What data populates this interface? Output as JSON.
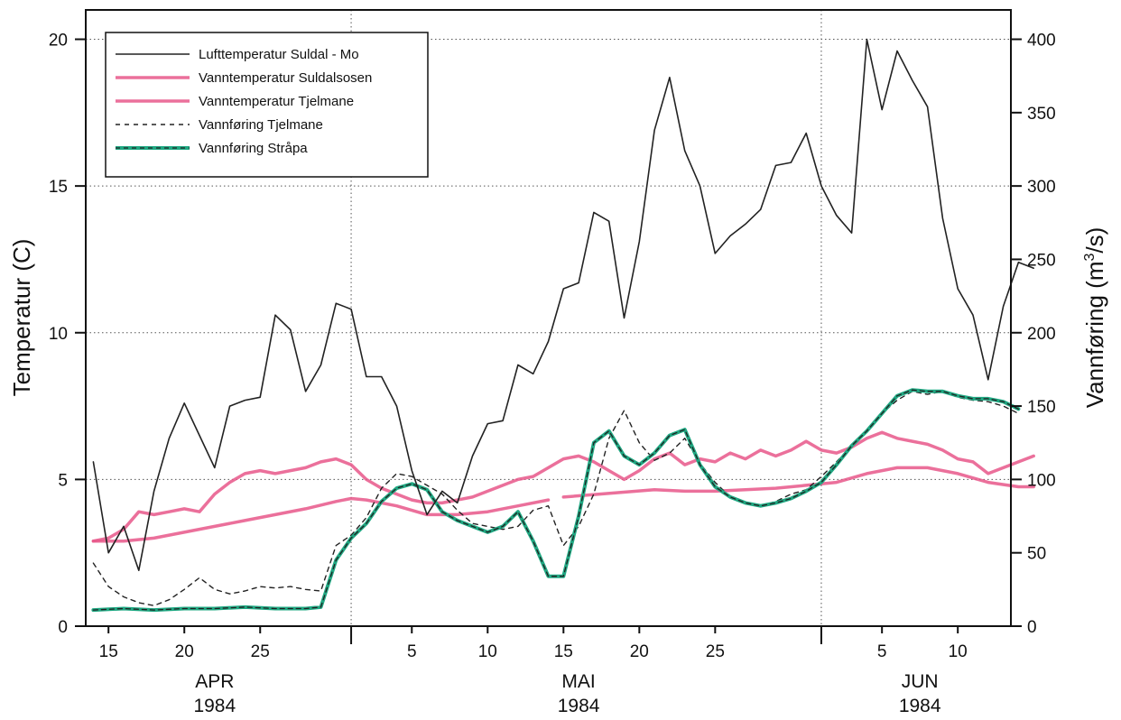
{
  "chart_data": {
    "type": "line",
    "x_axis": {
      "unit": "day-of-period",
      "note": "day 1 = 1 April 1984",
      "range": [
        13.5,
        74.5
      ],
      "ticks": [
        {
          "x": 15,
          "label": "15"
        },
        {
          "x": 20,
          "label": "20"
        },
        {
          "x": 25,
          "label": "25"
        },
        {
          "x": 35,
          "label": "5"
        },
        {
          "x": 40,
          "label": "10"
        },
        {
          "x": 45,
          "label": "15"
        },
        {
          "x": 50,
          "label": "20"
        },
        {
          "x": 55,
          "label": "25"
        },
        {
          "x": 66,
          "label": "5"
        },
        {
          "x": 71,
          "label": "10"
        }
      ],
      "month_boundaries": [
        31,
        62
      ],
      "months": [
        {
          "name": "APR",
          "year": "1984",
          "x": 22
        },
        {
          "name": "MAI",
          "year": "1984",
          "x": 46
        },
        {
          "name": "JUN",
          "year": "1984",
          "x": 68.5
        }
      ]
    },
    "y_left": {
      "label": "Temperatur (C)",
      "range": [
        0,
        21
      ],
      "ticks": [
        0,
        5,
        10,
        15,
        20
      ],
      "grid": true
    },
    "y_right": {
      "label_main": "Vannføring (m",
      "label_sup": "3",
      "label_tail": "/s)",
      "range": [
        0,
        420
      ],
      "ticks": [
        0,
        50,
        100,
        150,
        200,
        250,
        300,
        350,
        400
      ]
    },
    "legend": {
      "position": "top-left",
      "entries": [
        {
          "name": "Lufttemperatur Suldal - Mo",
          "style": "thin-black"
        },
        {
          "name": "Vanntemperatur Suldalsosen",
          "style": "pink"
        },
        {
          "name": "Vanntemperatur Tjelmane",
          "style": "pink"
        },
        {
          "name": "Vannføring Tjelmane",
          "style": "dashed-black"
        },
        {
          "name": "Vannføring Stråpa",
          "style": "green-dashed"
        }
      ]
    },
    "series": [
      {
        "name": "Lufttemperatur Suldal - Mo",
        "axis": "left",
        "color": "#222222",
        "points": [
          [
            14,
            5.6
          ],
          [
            15,
            2.5
          ],
          [
            16,
            3.4
          ],
          [
            17,
            1.9
          ],
          [
            18,
            4.6
          ],
          [
            19,
            6.4
          ],
          [
            20,
            7.6
          ],
          [
            21,
            6.5
          ],
          [
            22,
            5.4
          ],
          [
            23,
            7.5
          ],
          [
            24,
            7.7
          ],
          [
            25,
            7.8
          ],
          [
            26,
            10.6
          ],
          [
            27,
            10.1
          ],
          [
            28,
            8.0
          ],
          [
            29,
            8.9
          ],
          [
            30,
            11.0
          ],
          [
            31,
            10.8
          ],
          [
            32,
            8.5
          ],
          [
            33,
            8.5
          ],
          [
            34,
            7.5
          ],
          [
            35,
            5.3
          ],
          [
            36,
            3.8
          ],
          [
            37,
            4.6
          ],
          [
            38,
            4.2
          ],
          [
            39,
            5.8
          ],
          [
            40,
            6.9
          ],
          [
            41,
            7.0
          ],
          [
            42,
            8.9
          ],
          [
            43,
            8.6
          ],
          [
            44,
            9.7
          ],
          [
            45,
            11.5
          ],
          [
            46,
            11.7
          ],
          [
            47,
            14.1
          ],
          [
            48,
            13.8
          ],
          [
            49,
            10.5
          ],
          [
            50,
            13.1
          ],
          [
            51,
            16.9
          ],
          [
            52,
            18.7
          ],
          [
            53,
            16.2
          ],
          [
            54,
            15.0
          ],
          [
            55,
            12.7
          ],
          [
            56,
            13.3
          ],
          [
            57,
            13.7
          ],
          [
            58,
            14.2
          ],
          [
            59,
            15.7
          ],
          [
            60,
            15.8
          ],
          [
            61,
            16.8
          ],
          [
            62,
            15.0
          ],
          [
            63,
            14.0
          ],
          [
            64,
            13.4
          ],
          [
            65,
            20.0
          ],
          [
            66,
            17.6
          ],
          [
            67,
            19.6
          ],
          [
            68,
            18.6
          ],
          [
            69,
            17.7
          ],
          [
            70,
            13.9
          ],
          [
            71,
            11.5
          ],
          [
            72,
            10.6
          ],
          [
            73,
            8.4
          ],
          [
            74,
            10.9
          ],
          [
            75,
            12.4
          ],
          [
            76,
            12.2
          ]
        ]
      },
      {
        "name": "Vanntemperatur Suldalsosen",
        "axis": "left",
        "color": "#e8578a",
        "points": [
          [
            14,
            2.9
          ],
          [
            15,
            3.0
          ],
          [
            16,
            3.3
          ],
          [
            17,
            3.9
          ],
          [
            18,
            3.8
          ],
          [
            19,
            3.9
          ],
          [
            20,
            4.0
          ],
          [
            21,
            3.9
          ],
          [
            22,
            4.5
          ],
          [
            23,
            4.9
          ],
          [
            24,
            5.2
          ],
          [
            25,
            5.3
          ],
          [
            26,
            5.2
          ],
          [
            27,
            5.3
          ],
          [
            28,
            5.4
          ],
          [
            29,
            5.6
          ],
          [
            30,
            5.7
          ],
          [
            31,
            5.5
          ],
          [
            32,
            5.0
          ],
          [
            33,
            4.7
          ],
          [
            34,
            4.5
          ],
          [
            35,
            4.3
          ],
          [
            36,
            4.2
          ],
          [
            37,
            4.2
          ],
          [
            38,
            4.3
          ],
          [
            39,
            4.4
          ],
          [
            40,
            4.6
          ],
          [
            41,
            4.8
          ],
          [
            42,
            5.0
          ],
          [
            43,
            5.1
          ],
          [
            44,
            5.4
          ],
          [
            45,
            5.7
          ],
          [
            46,
            5.8
          ],
          [
            47,
            5.6
          ],
          [
            48,
            5.3
          ],
          [
            49,
            5.0
          ],
          [
            50,
            5.3
          ],
          [
            51,
            5.7
          ],
          [
            52,
            5.9
          ],
          [
            53,
            5.5
          ],
          [
            54,
            5.7
          ],
          [
            55,
            5.6
          ],
          [
            56,
            5.9
          ],
          [
            57,
            5.7
          ],
          [
            58,
            6.0
          ],
          [
            59,
            5.8
          ],
          [
            60,
            6.0
          ],
          [
            61,
            6.3
          ],
          [
            62,
            6.0
          ],
          [
            63,
            5.9
          ],
          [
            64,
            6.1
          ],
          [
            65,
            6.4
          ],
          [
            66,
            6.6
          ],
          [
            67,
            6.4
          ],
          [
            68,
            6.3
          ],
          [
            69,
            6.2
          ],
          [
            70,
            6.0
          ],
          [
            71,
            5.7
          ],
          [
            72,
            5.6
          ],
          [
            73,
            5.2
          ],
          [
            74,
            5.4
          ],
          [
            75,
            5.6
          ],
          [
            76,
            5.8
          ]
        ]
      },
      {
        "name": "Vanntemperatur Tjelmane",
        "axis": "left",
        "color": "#e8578a",
        "gap_after": 44,
        "points": [
          [
            14,
            2.9
          ],
          [
            16,
            2.9
          ],
          [
            18,
            3.0
          ],
          [
            20,
            3.2
          ],
          [
            22,
            3.4
          ],
          [
            24,
            3.6
          ],
          [
            26,
            3.8
          ],
          [
            28,
            4.0
          ],
          [
            30,
            4.25
          ],
          [
            31,
            4.35
          ],
          [
            32,
            4.3
          ],
          [
            34,
            4.1
          ],
          [
            36,
            3.8
          ],
          [
            38,
            3.8
          ],
          [
            40,
            3.9
          ],
          [
            42,
            4.1
          ],
          [
            44,
            4.3
          ],
          [
            45,
            4.4
          ],
          [
            51,
            4.65
          ],
          [
            53,
            4.6
          ],
          [
            55,
            4.6
          ],
          [
            57,
            4.65
          ],
          [
            59,
            4.7
          ],
          [
            61,
            4.8
          ],
          [
            63,
            4.9
          ],
          [
            65,
            5.2
          ],
          [
            67,
            5.4
          ],
          [
            69,
            5.4
          ],
          [
            71,
            5.2
          ],
          [
            73,
            4.9
          ],
          [
            75,
            4.75
          ],
          [
            76,
            4.75
          ]
        ]
      },
      {
        "name": "Vannføring Tjelmane",
        "axis": "right",
        "color": "#222222",
        "points": [
          [
            14,
            43
          ],
          [
            15,
            27
          ],
          [
            16,
            20
          ],
          [
            17,
            16
          ],
          [
            18,
            14
          ],
          [
            19,
            18
          ],
          [
            20,
            25
          ],
          [
            21,
            33
          ],
          [
            22,
            25
          ],
          [
            23,
            22
          ],
          [
            24,
            24
          ],
          [
            25,
            27
          ],
          [
            26,
            26
          ],
          [
            27,
            27
          ],
          [
            28,
            25
          ],
          [
            29,
            24
          ],
          [
            30,
            55
          ],
          [
            31,
            62
          ],
          [
            32,
            74
          ],
          [
            33,
            94
          ],
          [
            34,
            104
          ],
          [
            35,
            102
          ],
          [
            36,
            96
          ],
          [
            37,
            90
          ],
          [
            38,
            79
          ],
          [
            39,
            70
          ],
          [
            40,
            68
          ],
          [
            41,
            66
          ],
          [
            42,
            68
          ],
          [
            43,
            79
          ],
          [
            44,
            82
          ],
          [
            45,
            55
          ],
          [
            46,
            68
          ],
          [
            47,
            90
          ],
          [
            48,
            128
          ],
          [
            49,
            147
          ],
          [
            50,
            125
          ],
          [
            51,
            113
          ],
          [
            52,
            118
          ],
          [
            53,
            128
          ],
          [
            54,
            111
          ],
          [
            55,
            98
          ],
          [
            56,
            88
          ],
          [
            57,
            84
          ],
          [
            58,
            82
          ],
          [
            59,
            85
          ],
          [
            60,
            90
          ],
          [
            61,
            93
          ],
          [
            62,
            102
          ],
          [
            63,
            112
          ],
          [
            64,
            123
          ],
          [
            65,
            133
          ],
          [
            66,
            145
          ],
          [
            67,
            154
          ],
          [
            68,
            160
          ],
          [
            69,
            158
          ],
          [
            70,
            160
          ],
          [
            71,
            156
          ],
          [
            72,
            154
          ],
          [
            73,
            153
          ],
          [
            74,
            150
          ],
          [
            75,
            145
          ]
        ]
      },
      {
        "name": "Vannføring Stråpa",
        "axis": "right",
        "color": "#1fa882",
        "points": [
          [
            14,
            11
          ],
          [
            16,
            12
          ],
          [
            18,
            11
          ],
          [
            20,
            12
          ],
          [
            22,
            12
          ],
          [
            24,
            13
          ],
          [
            26,
            12
          ],
          [
            28,
            12
          ],
          [
            29,
            13
          ],
          [
            30,
            45
          ],
          [
            31,
            60
          ],
          [
            32,
            70
          ],
          [
            33,
            85
          ],
          [
            34,
            94
          ],
          [
            35,
            97
          ],
          [
            36,
            93
          ],
          [
            37,
            78
          ],
          [
            38,
            72
          ],
          [
            39,
            68
          ],
          [
            40,
            64
          ],
          [
            41,
            68
          ],
          [
            42,
            78
          ],
          [
            43,
            58
          ],
          [
            44,
            34
          ],
          [
            45,
            34
          ],
          [
            46,
            75
          ],
          [
            47,
            125
          ],
          [
            48,
            133
          ],
          [
            49,
            116
          ],
          [
            50,
            110
          ],
          [
            51,
            118
          ],
          [
            52,
            130
          ],
          [
            53,
            134
          ],
          [
            54,
            110
          ],
          [
            55,
            95
          ],
          [
            56,
            88
          ],
          [
            57,
            84
          ],
          [
            58,
            82
          ],
          [
            59,
            84
          ],
          [
            60,
            87
          ],
          [
            61,
            92
          ],
          [
            62,
            98
          ],
          [
            63,
            110
          ],
          [
            64,
            123
          ],
          [
            65,
            133
          ],
          [
            66,
            145
          ],
          [
            67,
            157
          ],
          [
            68,
            161
          ],
          [
            69,
            160
          ],
          [
            70,
            160
          ],
          [
            71,
            157
          ],
          [
            72,
            155
          ],
          [
            73,
            155
          ],
          [
            74,
            153
          ],
          [
            75,
            148
          ]
        ]
      }
    ]
  }
}
